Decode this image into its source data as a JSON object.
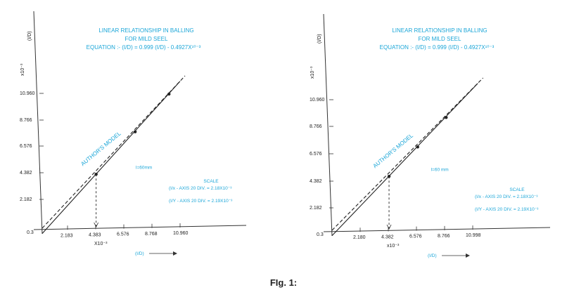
{
  "figure_caption": "FIg. 1:",
  "chart_data": [
    {
      "type": "line",
      "title": "LINEAR RELATIONSHIP IN BALLING",
      "subtitle": "FOR MILD SEEL",
      "equation": "EQUATION :-  (I/D) = 0.999   (I/D) - 0.4927X¹⁰⁻³",
      "xlabel": "(I/D)",
      "ylabel": "(I/D)",
      "x_multiplier": "X10⁻³",
      "y_multiplier": "x10⁻³",
      "origin_label": "0.3",
      "x_ticks": [
        "2.183",
        "4.383",
        "6.576",
        "8.768",
        "10.960"
      ],
      "y_ticks": [
        "2.182",
        "4.382",
        "6.576",
        "8.766",
        "10.960"
      ],
      "xlim": [
        0,
        12.6
      ],
      "ylim": [
        0,
        12.6
      ],
      "series": [
        {
          "name": "AUTHOR'S MODEL",
          "style": "dashed",
          "x": [
            0,
            11.6
          ],
          "y": [
            0,
            11.3
          ]
        },
        {
          "style": "solid",
          "x": [
            0,
            11.2
          ],
          "y": [
            -0.4,
            10.9
          ]
        }
      ],
      "markers": [
        {
          "x": 4.38,
          "y": 4.0
        },
        {
          "x": 7.55,
          "y": 7.15
        },
        {
          "x": 10.3,
          "y": 9.95
        }
      ],
      "annotations": [
        "AUTHOR'S MODEL",
        "l=60mm"
      ],
      "scale_title": "SCALE",
      "scale_lines": [
        "(I/x - AXIS 20 DIV. = 2.18X10⁻³",
        "(I/Y - AXIS 20 DIV. = 2.19X10⁻³"
      ]
    },
    {
      "type": "line",
      "title": "LINEAR RELATIONSHIP IN BALLING",
      "subtitle": "FOR MILD SEEL",
      "equation": "EQUATION :-  (I/D) = 0.999   (I/D) - 0.4927X¹⁰⁻³",
      "xlabel": "(I/D)",
      "ylabel": "(I/D)",
      "x_multiplier": "x10⁻³",
      "y_multiplier": "x10⁻³",
      "origin_label": "0.3",
      "x_ticks": [
        "2.180",
        "4.382",
        "6.576",
        "8.766",
        "10.998"
      ],
      "y_ticks": [
        "2.182",
        "4.382",
        "6.576",
        "8.766",
        "10.960"
      ],
      "xlim": [
        0,
        12.6
      ],
      "ylim": [
        0,
        12.6
      ],
      "series": [
        {
          "name": "AUTHOR'S MODEL",
          "style": "dashed",
          "x": [
            0,
            11.6
          ],
          "y": [
            0,
            11.3
          ]
        },
        {
          "style": "solid",
          "x": [
            0,
            11.2
          ],
          "y": [
            -0.4,
            10.9
          ]
        }
      ],
      "markers": [
        {
          "x": 4.38,
          "y": 4.0
        },
        {
          "x": 6.58,
          "y": 6.18
        },
        {
          "x": 8.77,
          "y": 8.37
        }
      ],
      "annotations": [
        "AUTHOR'S MODEL",
        "l=60 mm"
      ],
      "scale_title": "SCALE",
      "scale_lines": [
        "(I/x - AXIS 20 DIV. = 2.18X10⁻³",
        "(I/Y - AXIS 20 DIV. = 2.19X10⁻³"
      ]
    }
  ]
}
